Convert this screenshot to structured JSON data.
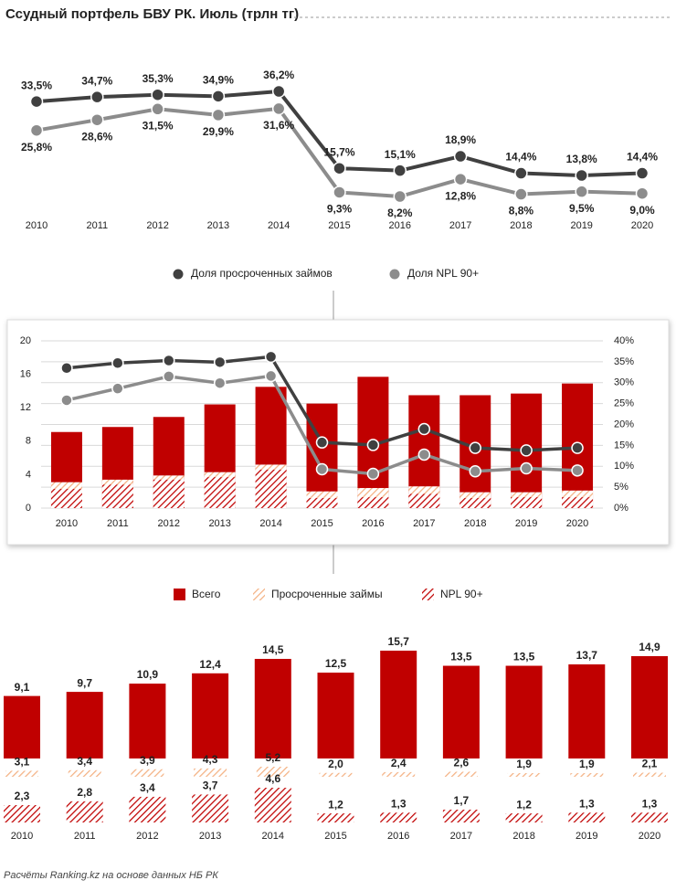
{
  "chart_data": [
    {
      "type": "line",
      "title": "Ссудный портфель БВУ РК. Июль (трлн тг)",
      "categories": [
        "2010",
        "2011",
        "2012",
        "2013",
        "2014",
        "2015",
        "2016",
        "2017",
        "2018",
        "2019",
        "2020"
      ],
      "series": [
        {
          "color": "#404040",
          "values": [
            33.5,
            34.7,
            35.3,
            34.9,
            36.2,
            15.7,
            15.1,
            18.9,
            14.4,
            13.8,
            14.4
          ],
          "value_labels": [
            "33,5%",
            "34,7%",
            "35,3%",
            "34,9%",
            "36,2%",
            "15,7%",
            "15,1%",
            "18,9%",
            "14,4%",
            "13,8%",
            "14,4%"
          ]
        },
        {
          "color": "#8c8c8c",
          "values": [
            25.8,
            28.6,
            31.5,
            29.9,
            31.6,
            9.3,
            8.2,
            12.8,
            8.8,
            9.5,
            9.0
          ],
          "value_labels": [
            "25,8%",
            "28,6%",
            "31,5%",
            "29,9%",
            "31,6%",
            "9,3%",
            "8,2%",
            "12,8%",
            "8,8%",
            "9,5%",
            "9,0%"
          ]
        }
      ]
    },
    {
      "type": "combo",
      "categories": [
        "2010",
        "2011",
        "2012",
        "2013",
        "2014",
        "2015",
        "2016",
        "2017",
        "2018",
        "2019",
        "2020"
      ],
      "ylim": [
        0,
        20
      ],
      "yticks": [
        0,
        4,
        8,
        12,
        16,
        20
      ],
      "y2lim": [
        0,
        40
      ],
      "y2ticks": [
        {
          "value": 0,
          "label": "0%"
        },
        {
          "value": 5,
          "label": "5%"
        },
        {
          "value": 10,
          "label": "10%"
        },
        {
          "value": 15,
          "label": "15%"
        },
        {
          "value": 20,
          "label": "20%"
        },
        {
          "value": 25,
          "label": "25%"
        },
        {
          "value": 30,
          "label": "30%"
        },
        {
          "value": 35,
          "label": "35%"
        },
        {
          "value": 40,
          "label": "40%"
        }
      ],
      "grid": true,
      "series": [
        {
          "name": "Всего",
          "type": "bar",
          "color": "#c00000",
          "values": [
            9.1,
            9.7,
            10.9,
            12.4,
            14.5,
            12.5,
            15.7,
            13.5,
            13.5,
            13.7,
            14.9
          ]
        },
        {
          "name": "Просроченные займы",
          "type": "bar",
          "pattern": "hatch",
          "color": "#f4b183",
          "values": [
            3.1,
            3.4,
            3.9,
            4.3,
            5.2,
            2.0,
            2.4,
            2.6,
            1.9,
            1.9,
            2.1
          ]
        },
        {
          "name": "NPL 90+",
          "type": "bar",
          "pattern": "hatch",
          "color": "#c00000",
          "values": [
            2.3,
            2.8,
            3.4,
            3.7,
            4.6,
            1.2,
            1.3,
            1.7,
            1.2,
            1.3,
            1.3
          ]
        },
        {
          "name": "Доля просроченных займов",
          "type": "line",
          "axis": "y2",
          "color": "#404040",
          "values": [
            33.5,
            34.7,
            35.3,
            34.9,
            36.2,
            15.7,
            15.1,
            18.9,
            14.4,
            13.8,
            14.4
          ]
        },
        {
          "name": "Доля NPL 90+",
          "type": "line",
          "axis": "y2",
          "color": "#8c8c8c",
          "values": [
            25.8,
            28.6,
            31.5,
            29.9,
            31.6,
            9.3,
            8.2,
            12.8,
            8.8,
            9.5,
            9.0
          ]
        }
      ]
    },
    {
      "type": "bar-rows",
      "categories": [
        "2010",
        "2011",
        "2012",
        "2013",
        "2014",
        "2015",
        "2016",
        "2017",
        "2018",
        "2019",
        "2020"
      ],
      "series": [
        {
          "color": "#c00000",
          "values": [
            9.1,
            9.7,
            10.9,
            12.4,
            14.5,
            12.5,
            15.7,
            13.5,
            13.5,
            13.7,
            14.9
          ],
          "value_labels": [
            "9,1",
            "9,7",
            "10,9",
            "12,4",
            "14,5",
            "12,5",
            "15,7",
            "13,5",
            "13,5",
            "13,7",
            "14,9"
          ]
        },
        {
          "pattern": "hatch",
          "color": "#f4b183",
          "values": [
            3.1,
            3.4,
            3.9,
            4.3,
            5.2,
            2.0,
            2.4,
            2.6,
            1.9,
            1.9,
            2.1
          ],
          "value_labels": [
            "3,1",
            "3,4",
            "3,9",
            "4,3",
            "5,2",
            "2,0",
            "2,4",
            "2,6",
            "1,9",
            "1,9",
            "2,1"
          ]
        },
        {
          "pattern": "hatch",
          "color": "#c00000",
          "values": [
            2.3,
            2.8,
            3.4,
            3.7,
            4.6,
            1.2,
            1.3,
            1.7,
            1.2,
            1.3,
            1.3
          ],
          "value_labels": [
            "2,3",
            "2,8",
            "3,4",
            "3,7",
            "4,6",
            "1,2",
            "1,3",
            "1,7",
            "1,2",
            "1,3",
            "1,3"
          ]
        }
      ]
    }
  ],
  "source": "Расчёты Ranking.kz на основе данных НБ РК"
}
